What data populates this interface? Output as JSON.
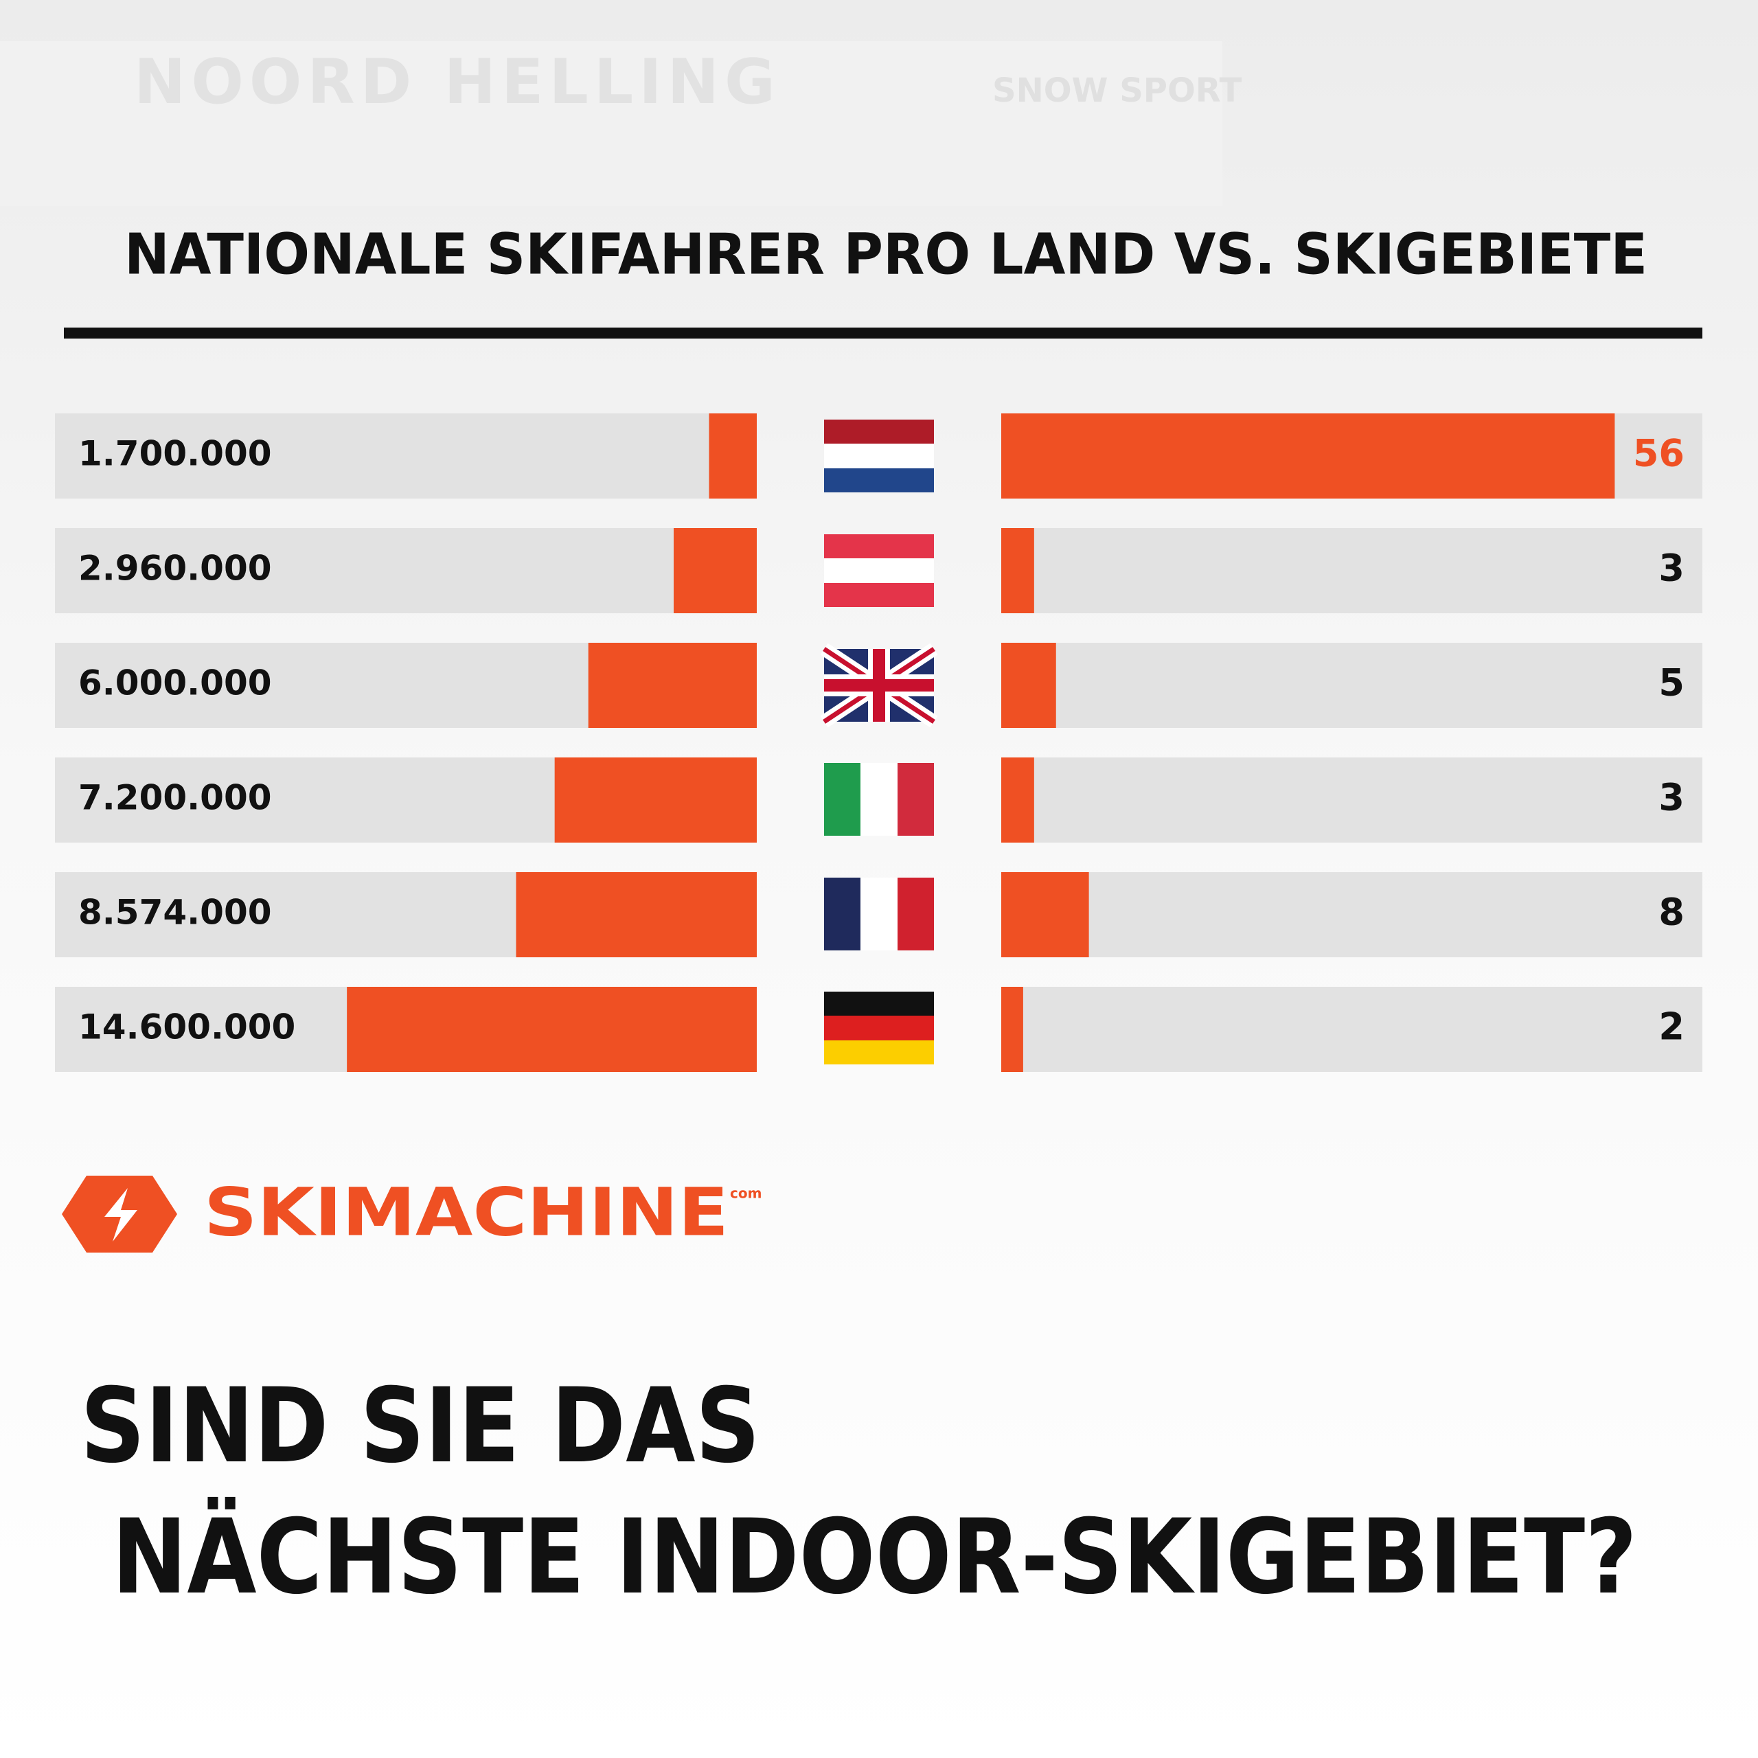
{
  "background_texts": [
    "NOORD HELLING",
    "SNOW SPORT"
  ],
  "chart_data": {
    "type": "butterfly-bar",
    "title": "NATIONALE SKIFAHRER PRO LAND VS. SKIGEBIETE",
    "categories": [
      null,
      null,
      null,
      null,
      null,
      null
    ],
    "panel_color": "#e2e2e2",
    "series": [
      {
        "color": "#ef5023",
        "side": "left",
        "xlim": [
          0,
          25000000
        ],
        "values": [
          1700000,
          2960000,
          6000000,
          7200000,
          8574000,
          14600000
        ],
        "value_labels": [
          "1.700.000",
          "2.960.000",
          "6.000.000",
          "7.200.000",
          "8.574.000",
          "14.600.000"
        ]
      },
      {
        "color": "#ef5023",
        "side": "right",
        "xlim": [
          0,
          64
        ],
        "values": [
          56,
          3,
          5,
          3,
          8,
          2
        ]
      }
    ]
  },
  "logo": {
    "name": "SKIMACHINE",
    "suffix": "com"
  },
  "question": [
    "SIND SIE DAS",
    "NÄCHSTE INDOOR-SKIGEBIET?"
  ]
}
